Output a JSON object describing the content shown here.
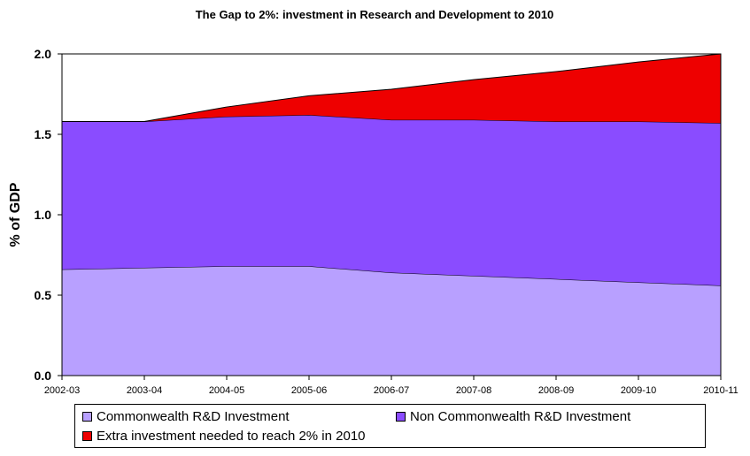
{
  "chart_data": {
    "type": "area",
    "stacked": true,
    "title": "The Gap to 2%: investment in Research and Development to 2010",
    "xlabel": "",
    "ylabel": "% of GDP",
    "ylim": [
      0,
      2.0
    ],
    "yticks": [
      "0.0",
      "0.5",
      "1.0",
      "1.5",
      "2.0"
    ],
    "categories": [
      "2002-03",
      "2003-04",
      "2004-05",
      "2005-06",
      "2006-07",
      "2007-08",
      "2008-09",
      "2009-10",
      "2010-11"
    ],
    "grid": false,
    "legend_position": "bottom",
    "series": [
      {
        "name": "Commonwealth R&D Investment",
        "color": "#b8a0ff",
        "values": [
          0.66,
          0.67,
          0.68,
          0.68,
          0.64,
          0.62,
          0.6,
          0.58,
          0.56
        ]
      },
      {
        "name": "Non Commonwealth R&D Investment",
        "color": "#8a4cff",
        "values": [
          0.92,
          0.91,
          0.93,
          0.94,
          0.95,
          0.97,
          0.98,
          1.0,
          1.01
        ]
      },
      {
        "name": "Extra investment needed to reach 2% in 2010",
        "color": "#ee0000",
        "values": [
          0.0,
          0.0,
          0.06,
          0.12,
          0.19,
          0.25,
          0.31,
          0.37,
          0.43
        ]
      }
    ]
  }
}
